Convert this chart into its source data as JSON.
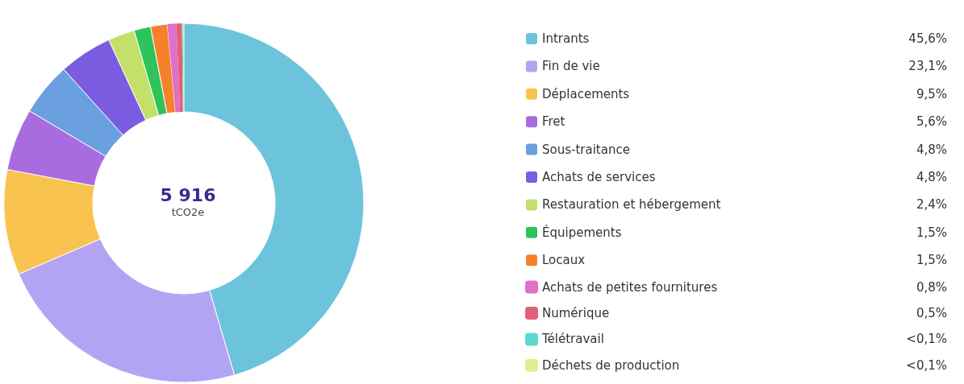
{
  "chart_data": {
    "type": "donut",
    "title": "5 916",
    "subtitle": "tCO2e",
    "categories": [
      "Intrants",
      "Fin de vie",
      "Déplacements",
      "Fret",
      "Sous-traitance",
      "Achats de services",
      "Restauration et hébergement",
      "Équipements",
      "Locaux",
      "Achats de petites fournitures",
      "Numérique",
      "Télétravail",
      "Déchets de production"
    ],
    "values": [
      45.6,
      23.1,
      9.5,
      5.6,
      4.8,
      4.8,
      2.4,
      1.5,
      1.5,
      0.8,
      0.5,
      0.09,
      0.09
    ],
    "value_labels": [
      "45,6%",
      "23,1%",
      "9,5%",
      "5,6%",
      "4,8%",
      "4,8%",
      "2,4%",
      "1,5%",
      "1,5%",
      "0,8%",
      "0,5%",
      "<0,1%",
      "<0,1%"
    ],
    "colors": [
      "#6cc3dc",
      "#b3a4f3",
      "#f9c350",
      "#a86ce0",
      "#6a9fe0",
      "#7b5ce0",
      "#c3e06a",
      "#2ec45a",
      "#f5822a",
      "#e070c8",
      "#e0607a",
      "#5ed8d0",
      "#e2ee96"
    ],
    "legend": "right"
  }
}
